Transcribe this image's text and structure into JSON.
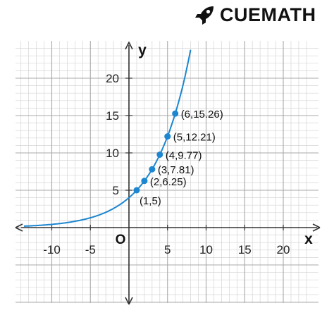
{
  "brand": {
    "name": "CUEMATH",
    "icon": "rocket-icon"
  },
  "chart_data": {
    "type": "line",
    "function_shape": "exponential",
    "xlabel": "x",
    "ylabel": "y",
    "origin_label": "O",
    "xlim": [
      -14,
      23
    ],
    "ylim": [
      -11,
      24
    ],
    "grid": true,
    "x_ticks": [
      -10,
      -5,
      5,
      10,
      15,
      20
    ],
    "y_ticks": [
      5,
      10,
      15,
      20
    ],
    "x_tick_labels": [
      "-10",
      "-5",
      "5",
      "10",
      "15",
      "20"
    ],
    "y_tick_labels": [
      "5",
      "10",
      "15",
      "20"
    ],
    "points": [
      {
        "x": 1,
        "y": 5,
        "label": "(1,5)"
      },
      {
        "x": 2,
        "y": 6.25,
        "label": "(2,6.25)"
      },
      {
        "x": 3,
        "y": 7.81,
        "label": "(3,7.81)"
      },
      {
        "x": 4,
        "y": 9.77,
        "label": "(4,9.77)"
      },
      {
        "x": 5,
        "y": 12.21,
        "label": "(5,12.21)"
      },
      {
        "x": 6,
        "y": 15.26,
        "label": "(6,15.26)"
      }
    ],
    "curve_color": "#1c86d0",
    "point_color": "#1c86d0",
    "grid_minor_color": "#d6d6d6",
    "grid_major_color": "#a9a9a9",
    "axis_color": "#333333"
  }
}
